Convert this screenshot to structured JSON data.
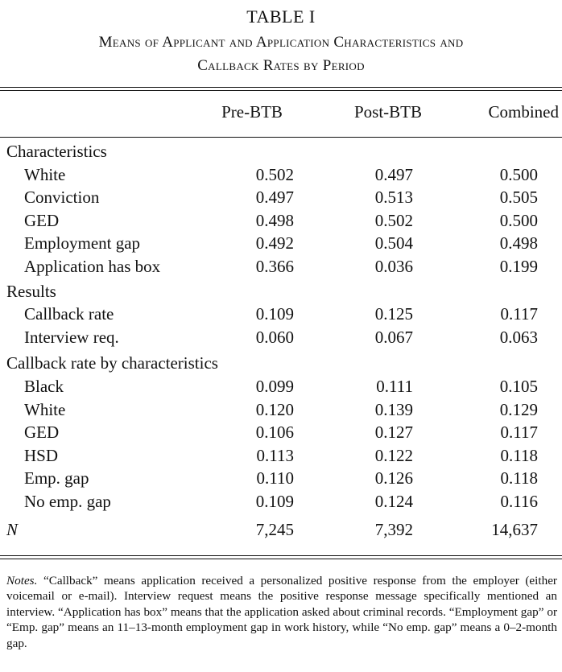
{
  "table_label": "TABLE I",
  "caption": {
    "line1": "Means of Applicant and Application Characteristics and",
    "line2": "Callback Rates by Period"
  },
  "columns": [
    "Pre-BTB",
    "Post-BTB",
    "Combined"
  ],
  "sections": [
    {
      "title": "Characteristics",
      "rows": [
        {
          "label": "White",
          "values": [
            "0.502",
            "0.497",
            "0.500"
          ]
        },
        {
          "label": "Conviction",
          "values": [
            "0.497",
            "0.513",
            "0.505"
          ]
        },
        {
          "label": "GED",
          "values": [
            "0.498",
            "0.502",
            "0.500"
          ]
        },
        {
          "label": "Employment gap",
          "values": [
            "0.492",
            "0.504",
            "0.498"
          ]
        },
        {
          "label": "Application has box",
          "values": [
            "0.366",
            "0.036",
            "0.199"
          ]
        }
      ]
    },
    {
      "title": "Results",
      "rows": [
        {
          "label": "Callback rate",
          "values": [
            "0.109",
            "0.125",
            "0.117"
          ]
        },
        {
          "label": "Interview req.",
          "values": [
            "0.060",
            "0.067",
            "0.063"
          ]
        }
      ]
    },
    {
      "title": "Callback rate by characteristics",
      "rows": [
        {
          "label": "Black",
          "values": [
            "0.099",
            "0.111",
            "0.105"
          ]
        },
        {
          "label": "White",
          "values": [
            "0.120",
            "0.139",
            "0.129"
          ]
        },
        {
          "label": "GED",
          "values": [
            "0.106",
            "0.127",
            "0.117"
          ]
        },
        {
          "label": "HSD",
          "values": [
            "0.113",
            "0.122",
            "0.118"
          ]
        },
        {
          "label": "Emp. gap",
          "values": [
            "0.110",
            "0.126",
            "0.118"
          ]
        },
        {
          "label": "No emp. gap",
          "values": [
            "0.109",
            "0.124",
            "0.116"
          ]
        }
      ]
    }
  ],
  "n_row": {
    "label": "N",
    "values": [
      "7,245",
      "7,392",
      "14,637"
    ]
  },
  "notes": {
    "head": "Notes.",
    "body": " “Callback” means application received a personalized positive response from the employer (either voicemail or e-mail). Interview request means the positive response message specifically mentioned an interview. “Application has box” means that the application asked about criminal records. “Employment gap” or “Emp. gap” means an 11–13-month employment gap in work history, while “No emp. gap” means a 0–2-month gap."
  }
}
